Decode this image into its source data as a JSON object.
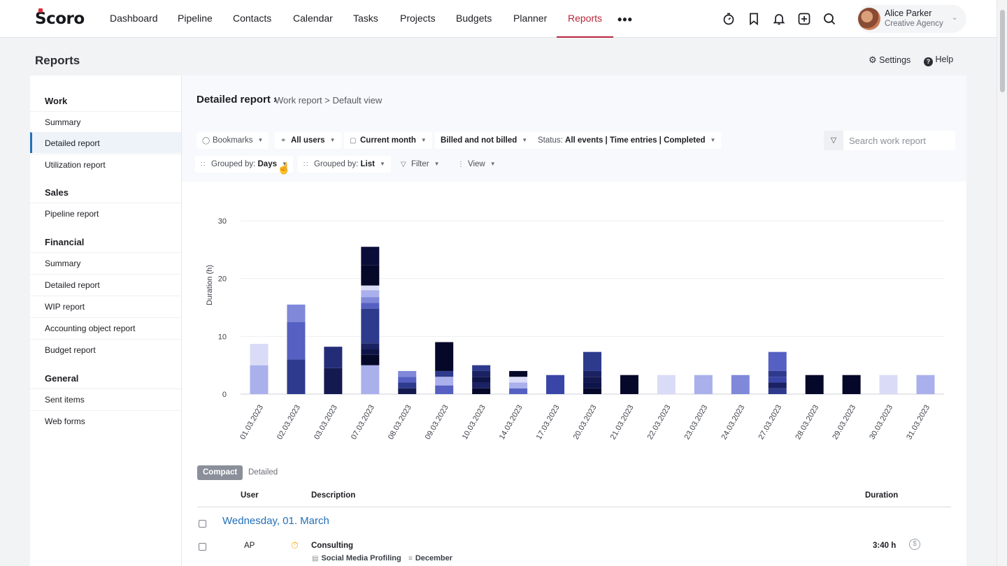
{
  "app": {
    "logo": "Scoro"
  },
  "nav": {
    "items": [
      "Dashboard",
      "Pipeline",
      "Contacts",
      "Calendar",
      "Tasks",
      "Projects",
      "Budgets",
      "Planner",
      "Reports"
    ],
    "active": "Reports",
    "more": "•••"
  },
  "topicons": [
    "timer-icon",
    "bookmark-icon",
    "bell-icon",
    "plus-square-icon",
    "search-icon"
  ],
  "user": {
    "name": "Alice Parker",
    "org": "Creative Agency"
  },
  "header": {
    "title": "Reports",
    "settings": "Settings",
    "help": "Help"
  },
  "sidebar": {
    "sections": [
      {
        "title": "Work",
        "items": [
          "Summary",
          "Detailed report",
          "Utilization report"
        ]
      },
      {
        "title": "Sales",
        "items": [
          "Pipeline report"
        ]
      },
      {
        "title": "Financial",
        "items": [
          "Summary",
          "Detailed report",
          "WIP report",
          "Accounting object report",
          "Budget report"
        ]
      },
      {
        "title": "General",
        "items": [
          "Sent items",
          "Web forms"
        ]
      }
    ],
    "active": "Detailed report"
  },
  "breadcrumb": {
    "title": "Detailed report",
    "sep": "›",
    "rest": "Work report > Default view"
  },
  "filters": {
    "bookmarks": "Bookmarks",
    "users": "All users",
    "period": "Current month",
    "billing": "Billed and not billed",
    "status_label": "Status:",
    "status_value": "All events | Time entries | Completed",
    "grouped1_label": "Grouped by:",
    "grouped1_value": "Days",
    "grouped2_label": "Grouped by:",
    "grouped2_value": "List",
    "filter": "Filter",
    "view": "View"
  },
  "search": {
    "placeholder": "Search work report"
  },
  "colors": {
    "accent": "#b8253a",
    "link": "#2370b8"
  },
  "chart_data": {
    "type": "bar",
    "stacked": true,
    "ylabel": "Duration (h)",
    "ylim": [
      0,
      30
    ],
    "yticks": [
      0,
      10,
      20,
      30
    ],
    "grid": true,
    "categories": [
      "01.03.2023",
      "02.03.2023",
      "03.03.2023",
      "07.03.2023",
      "08.03.2023",
      "09.03.2023",
      "10.03.2023",
      "14.03.2023",
      "17.03.2023",
      "20.03.2023",
      "21.03.2023",
      "22.03.2023",
      "23.03.2023",
      "24.03.2023",
      "27.03.2023",
      "28.03.2023",
      "29.03.2023",
      "30.03.2023",
      "31.03.2023"
    ],
    "stacks": [
      [
        {
          "v": 5,
          "c": "#a9b0ec"
        },
        {
          "v": 3.7,
          "c": "#dadcf7"
        }
      ],
      [
        {
          "v": 6,
          "c": "#2e3a8c"
        },
        {
          "v": 6.5,
          "c": "#5560c2"
        },
        {
          "v": 3,
          "c": "#7f88d9"
        }
      ],
      [
        {
          "v": 4.5,
          "c": "#14194f"
        },
        {
          "v": 3.7,
          "c": "#232d77"
        }
      ],
      [
        {
          "v": 5,
          "c": "#a9b0ec"
        },
        {
          "v": 1.8,
          "c": "#06082a"
        },
        {
          "v": 1,
          "c": "#0f1448"
        },
        {
          "v": 1,
          "c": "#1b2263"
        },
        {
          "v": 6,
          "c": "#2e3a8c"
        },
        {
          "v": 1,
          "c": "#5560c2"
        },
        {
          "v": 1,
          "c": "#7f88d9"
        },
        {
          "v": 1.2,
          "c": "#a9b0ec"
        },
        {
          "v": 0.8,
          "c": "#dadcf7"
        },
        {
          "v": 3.5,
          "c": "#06082a"
        },
        {
          "v": 3.2,
          "c": "#0a0d38"
        }
      ],
      [
        {
          "v": 1,
          "c": "#14194f"
        },
        {
          "v": 1,
          "c": "#2e3a8c"
        },
        {
          "v": 1,
          "c": "#5560c2"
        },
        {
          "v": 1,
          "c": "#7f88d9"
        }
      ],
      [
        {
          "v": 1.5,
          "c": "#5560c2"
        },
        {
          "v": 1.5,
          "c": "#a9b0ec"
        },
        {
          "v": 1,
          "c": "#2e3a8c"
        },
        {
          "v": 5,
          "c": "#06082a"
        }
      ],
      [
        {
          "v": 1,
          "c": "#06082a"
        },
        {
          "v": 1,
          "c": "#1b2263"
        },
        {
          "v": 1,
          "c": "#0f1448"
        },
        {
          "v": 1,
          "c": "#1b2263"
        },
        {
          "v": 1,
          "c": "#2e3a8c"
        }
      ],
      [
        {
          "v": 1,
          "c": "#5560c2"
        },
        {
          "v": 1,
          "c": "#a9b0ec"
        },
        {
          "v": 1,
          "c": "#dadcf7"
        },
        {
          "v": 1,
          "c": "#06082a"
        }
      ],
      [
        {
          "v": 3.3,
          "c": "#3a45a8"
        }
      ],
      [
        {
          "v": 1,
          "c": "#06082a"
        },
        {
          "v": 1,
          "c": "#0f1448"
        },
        {
          "v": 1,
          "c": "#14194f"
        },
        {
          "v": 1,
          "c": "#1b2263"
        },
        {
          "v": 3.3,
          "c": "#2e3a8c"
        }
      ],
      [
        {
          "v": 3.3,
          "c": "#06082a"
        }
      ],
      [
        {
          "v": 3.3,
          "c": "#dadcf7"
        }
      ],
      [
        {
          "v": 3.3,
          "c": "#a9b0ec"
        }
      ],
      [
        {
          "v": 3.3,
          "c": "#7f88d9"
        }
      ],
      [
        {
          "v": 1,
          "c": "#2e3a8c"
        },
        {
          "v": 1,
          "c": "#1b2263"
        },
        {
          "v": 1,
          "c": "#3a45a8"
        },
        {
          "v": 1,
          "c": "#2e3a8c"
        },
        {
          "v": 3.3,
          "c": "#5560c2"
        }
      ],
      [
        {
          "v": 3.3,
          "c": "#06082a"
        }
      ],
      [
        {
          "v": 3.3,
          "c": "#06082a"
        }
      ],
      [
        {
          "v": 3.3,
          "c": "#dadcf7"
        }
      ],
      [
        {
          "v": 3.3,
          "c": "#a9b0ec"
        }
      ]
    ]
  },
  "view_tabs": {
    "compact": "Compact",
    "detailed": "Detailed"
  },
  "table": {
    "headers": {
      "user": "User",
      "description": "Description",
      "duration": "Duration"
    },
    "group": "Wednesday, 01. March",
    "rows": [
      {
        "user": "AP",
        "title": "Consulting",
        "project": "Social Media Profiling",
        "phase": "December",
        "duration": "3:40 h"
      }
    ]
  }
}
